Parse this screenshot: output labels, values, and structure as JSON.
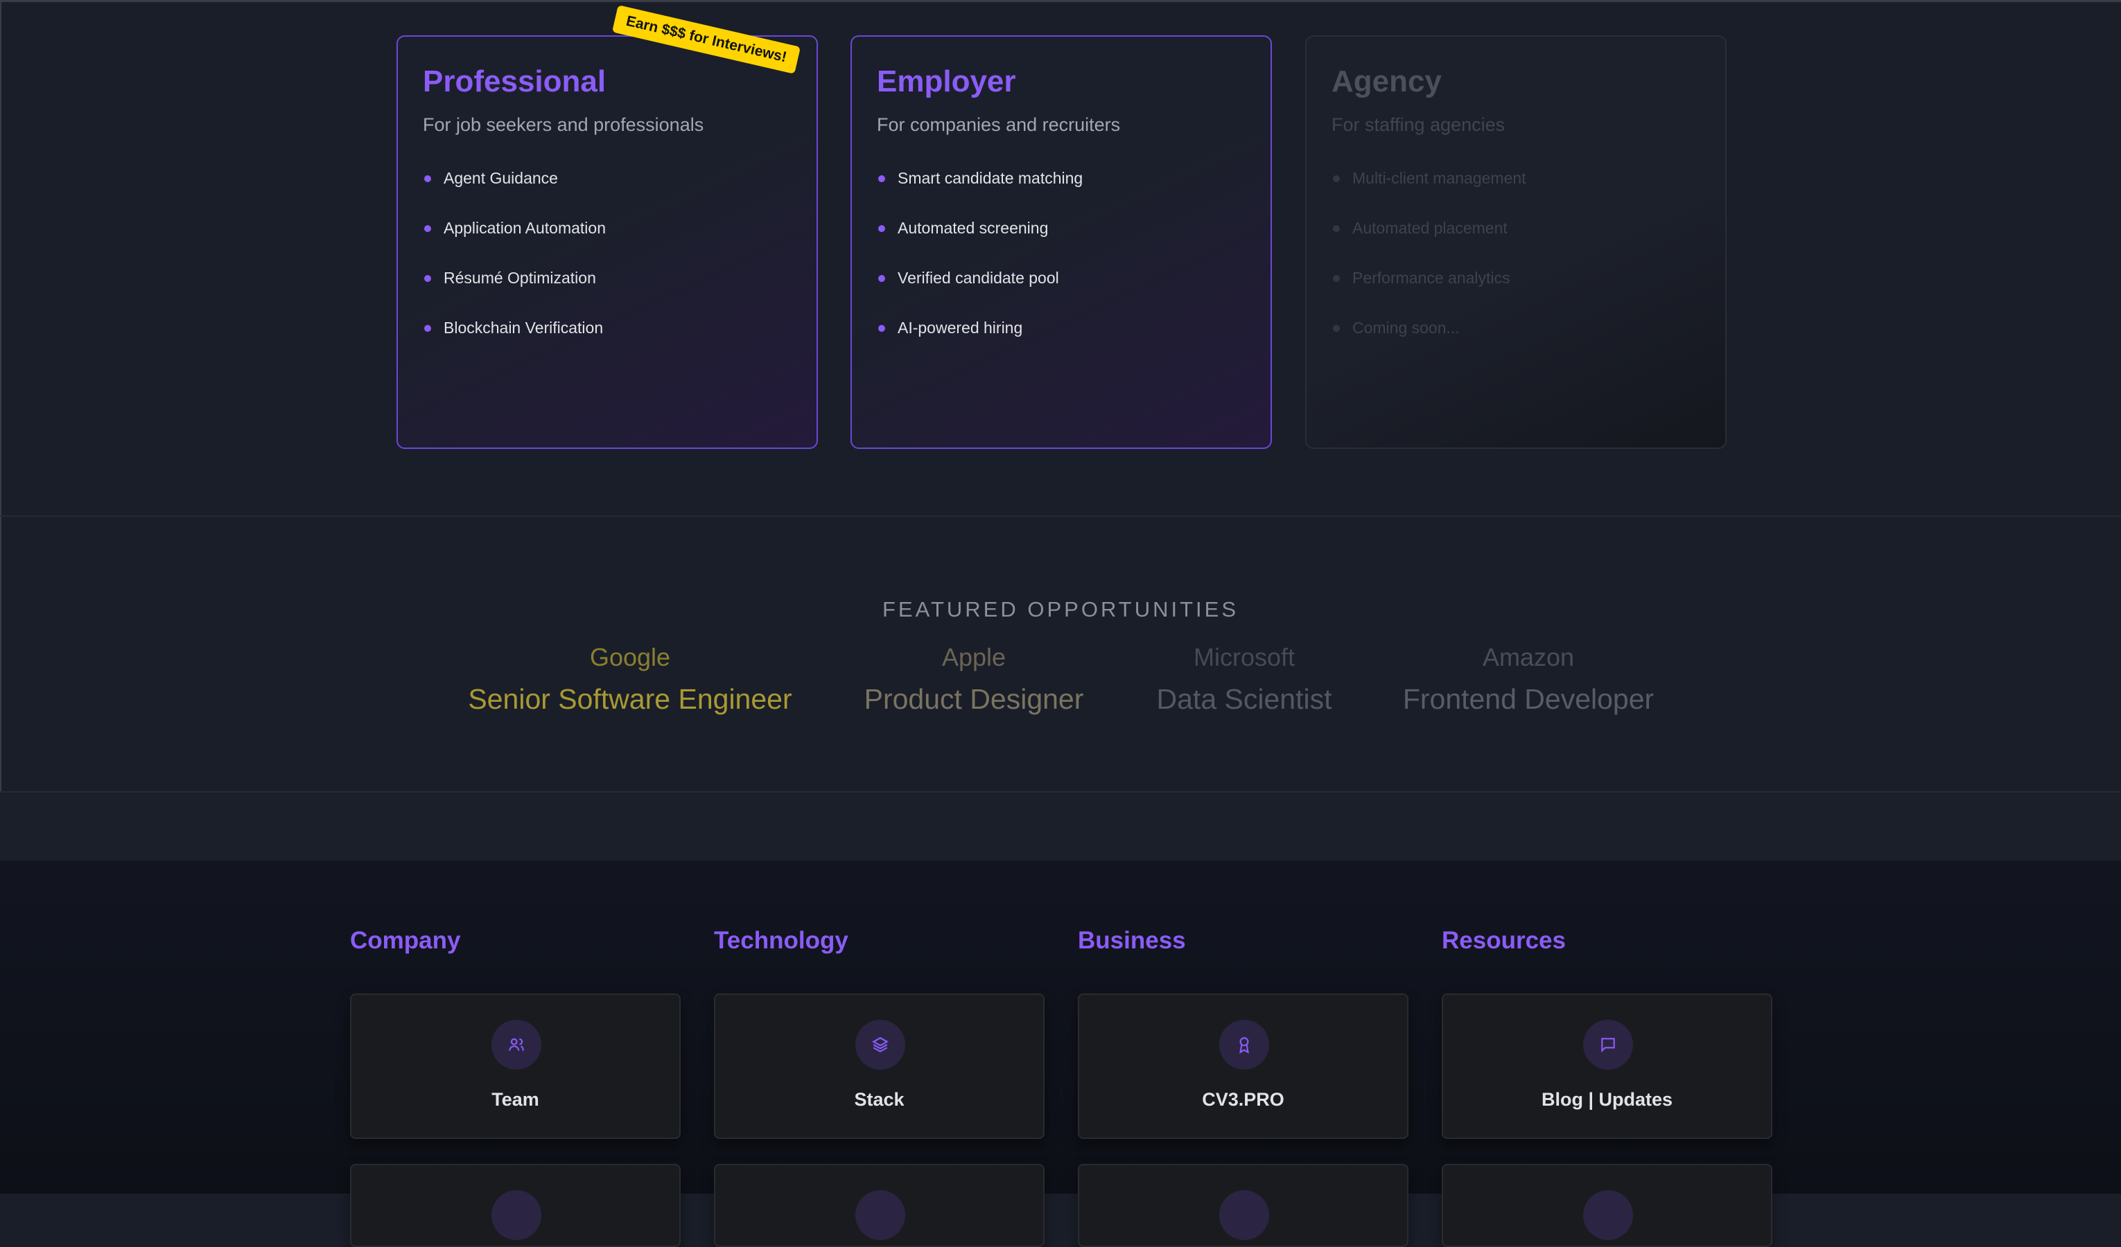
{
  "plans": [
    {
      "title": "Professional",
      "subtitle": "For job seekers and professionals",
      "features": [
        "Agent Guidance",
        "Application Automation",
        "Résumé Optimization",
        "Blockchain Verification"
      ],
      "badge": "Earn $$$ for Interviews!"
    },
    {
      "title": "Employer",
      "subtitle": "For companies and recruiters",
      "features": [
        "Smart candidate matching",
        "Automated screening",
        "Verified candidate pool",
        "AI-powered hiring"
      ]
    },
    {
      "title": "Agency",
      "subtitle": "For staffing agencies",
      "features": [
        "Multi-client management",
        "Automated placement",
        "Performance analytics",
        "Coming soon..."
      ]
    }
  ],
  "featured": {
    "title": "FEATURED OPPORTUNITIES",
    "items": [
      {
        "company": "Google",
        "role": "Senior Software Engineer",
        "company_color": "#8a7f2e",
        "role_color": "#a99a33"
      },
      {
        "company": "Apple",
        "role": "Product Designer",
        "company_color": "#6a6553",
        "role_color": "#7a7460"
      },
      {
        "company": "Microsoft",
        "role": "Data Scientist",
        "company_color": "#464a53",
        "role_color": "#545861"
      },
      {
        "company": "Amazon",
        "role": "Frontend Developer",
        "company_color": "#4a4e57",
        "role_color": "#585c65"
      }
    ]
  },
  "footer": {
    "columns": [
      {
        "heading": "Company",
        "link": "Team",
        "icon": "users-icon"
      },
      {
        "heading": "Technology",
        "link": "Stack",
        "icon": "layers-icon"
      },
      {
        "heading": "Business",
        "link": "CV3.PRO",
        "icon": "award-icon"
      },
      {
        "heading": "Resources",
        "link": "Blog | Updates",
        "icon": "message-square-icon"
      }
    ]
  },
  "colors": {
    "accent": "#8b5cf6",
    "badge": "#ffd400",
    "background": "#1a1e29"
  }
}
